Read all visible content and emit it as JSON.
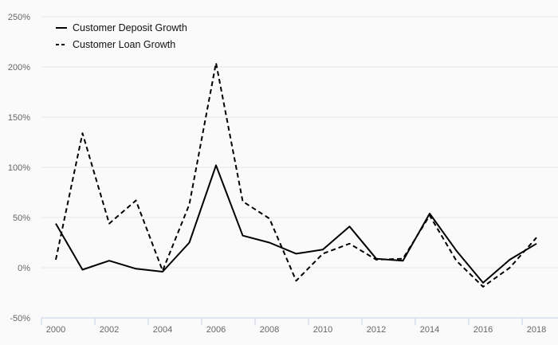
{
  "chart_data": {
    "type": "line",
    "x": [
      2000,
      2001,
      2002,
      2003,
      2004,
      2005,
      2006,
      2007,
      2008,
      2009,
      2010,
      2011,
      2012,
      2013,
      2014,
      2015,
      2016,
      2017,
      2018
    ],
    "series": [
      {
        "name": "Customer Deposit Growth",
        "style": "solid",
        "color": "#000000",
        "values": [
          44,
          -2,
          7,
          -1,
          -4,
          25,
          102,
          32,
          25,
          14,
          18,
          41,
          9,
          7,
          54,
          17,
          -15,
          8,
          24
        ]
      },
      {
        "name": "Customer Loan Growth",
        "style": "dashed",
        "color": "#000000",
        "values": [
          8,
          134,
          44,
          67,
          -3,
          63,
          204,
          66,
          49,
          -13,
          14,
          24,
          8,
          9,
          52,
          7,
          -19,
          0,
          30
        ]
      }
    ],
    "x_tick_labels": [
      "2000",
      "2002",
      "2004",
      "2006",
      "2008",
      "2010",
      "2012",
      "2014",
      "2016",
      "2018"
    ],
    "y_tick_labels": [
      "250%",
      "200%",
      "150%",
      "100%",
      "50%",
      "0%",
      "-50%"
    ],
    "y_ticks": [
      250,
      200,
      150,
      100,
      50,
      0,
      -50
    ],
    "ylim": [
      -50,
      250
    ],
    "xlim": [
      2000,
      2018
    ],
    "grid": true,
    "legend_position": "top-left",
    "title": "",
    "xlabel": "",
    "ylabel": ""
  },
  "colors": {
    "background": "#fafafa",
    "grid": "#e6e6e6",
    "axis": "#c6d2e6",
    "tick_text": "#666666",
    "line": "#000000"
  }
}
